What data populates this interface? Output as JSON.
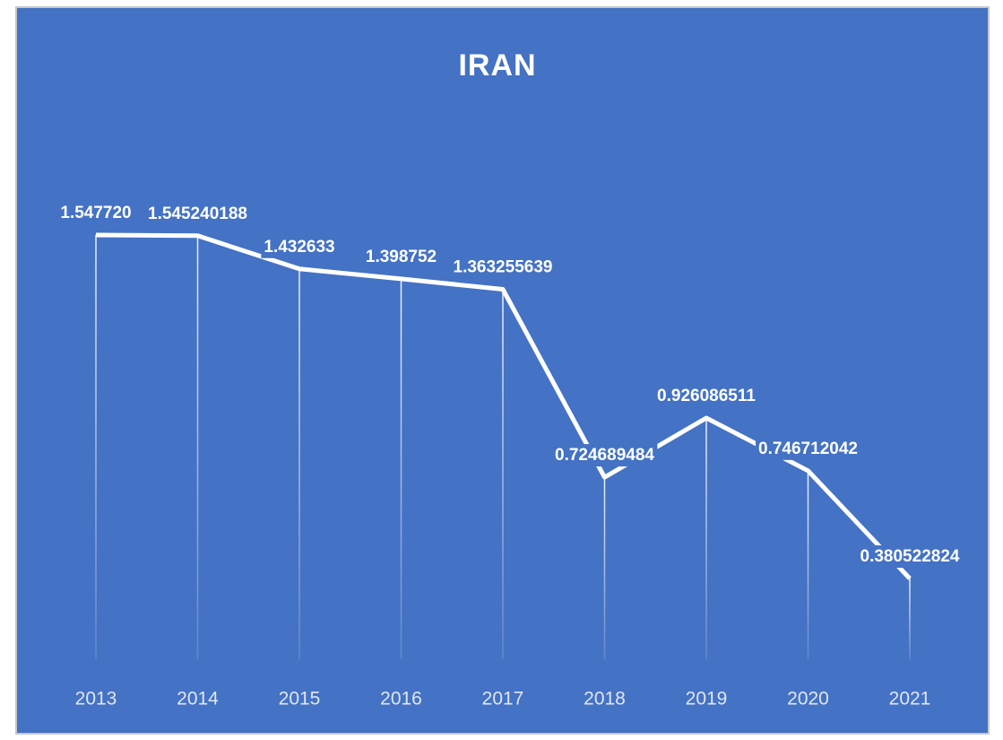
{
  "chart_data": {
    "type": "line",
    "title": "IRAN",
    "categories": [
      "2013",
      "2014",
      "2015",
      "2016",
      "2017",
      "2018",
      "2019",
      "2020",
      "2021"
    ],
    "values": [
      1.54772,
      1.545240188,
      1.432633,
      1.398752,
      1.363255639,
      0.724689484,
      0.926086511,
      0.746712042,
      0.380522824
    ],
    "value_labels": [
      "1.547720",
      "1.545240188",
      "1.432633",
      "1.398752",
      "1.363255639",
      "0.724689484",
      "0.926086511",
      "0.746712042",
      "0.380522824"
    ],
    "color": "#ffffff",
    "background": "#4472c4",
    "drop_lines": true
  }
}
